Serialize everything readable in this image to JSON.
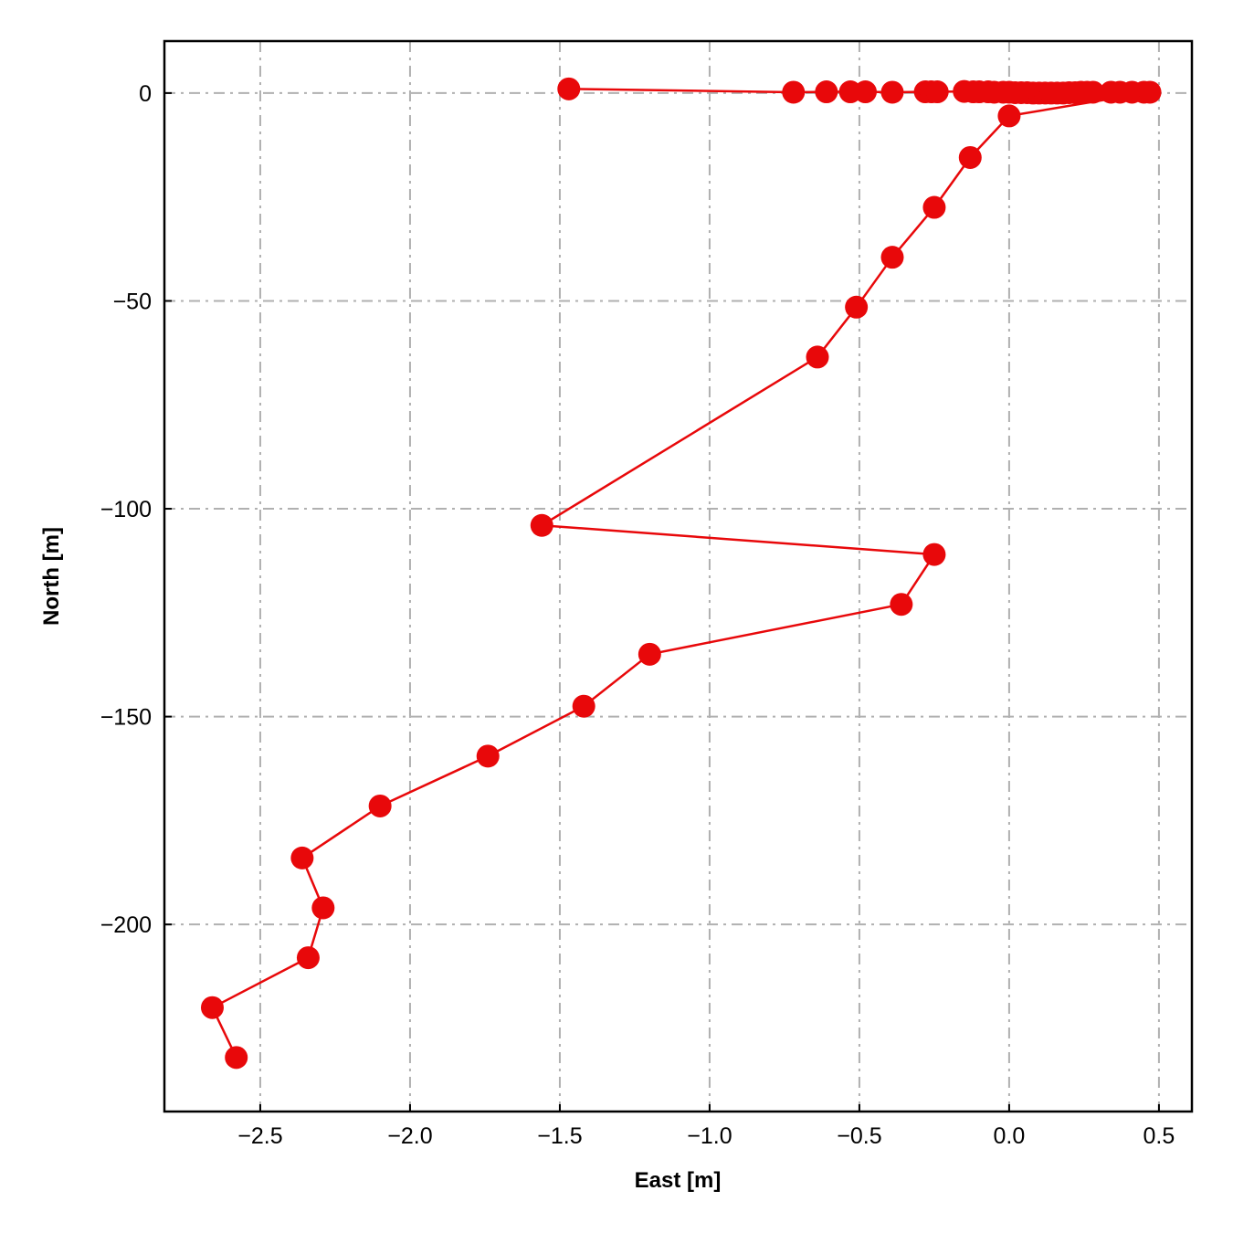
{
  "chart_data": {
    "type": "line",
    "title": "",
    "xlabel": "East [m]",
    "ylabel": "North [m]",
    "xlim": [
      -2.82,
      0.61
    ],
    "ylim": [
      -245,
      12.5
    ],
    "grid": true,
    "legend": "none",
    "line_style": "solid with circle markers",
    "xticks": [
      -2.5,
      -2.0,
      -1.5,
      -1.0,
      -0.5,
      0.0,
      0.5
    ],
    "xtick_labels": [
      "−2.5",
      "−2.0",
      "−1.5",
      "−1.0",
      "−0.5",
      "0.0",
      "0.5"
    ],
    "yticks": [
      0,
      -50,
      -100,
      -150,
      -200
    ],
    "ytick_labels": [
      "0",
      "−50",
      "−100",
      "−150",
      "−200"
    ],
    "colors": {
      "series": "#e8080a",
      "grid": "#b0b0b0",
      "frame": "#000000"
    },
    "series": [
      {
        "points": [
          [
            -1.47,
            1.0
          ],
          [
            -0.72,
            0.2
          ],
          [
            -0.61,
            0.3
          ],
          [
            -0.53,
            0.3
          ],
          [
            -0.48,
            0.3
          ],
          [
            -0.39,
            0.2
          ],
          [
            -0.28,
            0.3
          ],
          [
            -0.26,
            0.3
          ],
          [
            -0.24,
            0.3
          ],
          [
            -0.15,
            0.4
          ],
          [
            -0.12,
            0.3
          ],
          [
            -0.1,
            0.3
          ],
          [
            -0.07,
            0.3
          ],
          [
            -0.05,
            0.2
          ],
          [
            -0.02,
            0.2
          ],
          [
            0.0,
            0.2
          ],
          [
            0.02,
            0.1
          ],
          [
            0.04,
            0.1
          ],
          [
            0.06,
            0.1
          ],
          [
            0.08,
            0.0
          ],
          [
            0.1,
            0.0
          ],
          [
            0.12,
            0.0
          ],
          [
            0.14,
            0.0
          ],
          [
            0.16,
            0.0
          ],
          [
            0.18,
            0.0
          ],
          [
            0.2,
            0.1
          ],
          [
            0.22,
            0.1
          ],
          [
            0.24,
            0.2
          ],
          [
            0.26,
            0.2
          ],
          [
            0.28,
            0.2
          ],
          [
            0.34,
            0.2
          ],
          [
            0.37,
            0.2
          ],
          [
            0.41,
            0.2
          ],
          [
            0.45,
            0.2
          ],
          [
            0.47,
            0.2
          ],
          [
            0.0,
            -5.5
          ],
          [
            -0.13,
            -15.5
          ],
          [
            -0.25,
            -27.5
          ],
          [
            -0.39,
            -39.5
          ],
          [
            -0.51,
            -51.5
          ],
          [
            -0.64,
            -63.5
          ],
          [
            -1.56,
            -104.0
          ],
          [
            -0.25,
            -111.0
          ],
          [
            -0.36,
            -123.0
          ],
          [
            -1.2,
            -135.0
          ],
          [
            -1.42,
            -147.5
          ],
          [
            -1.74,
            -159.5
          ],
          [
            -2.1,
            -171.5
          ],
          [
            -2.36,
            -184.0
          ],
          [
            -2.29,
            -196.0
          ],
          [
            -2.34,
            -208.0
          ],
          [
            -2.66,
            -220.0
          ],
          [
            -2.58,
            -232.0
          ]
        ]
      }
    ]
  }
}
